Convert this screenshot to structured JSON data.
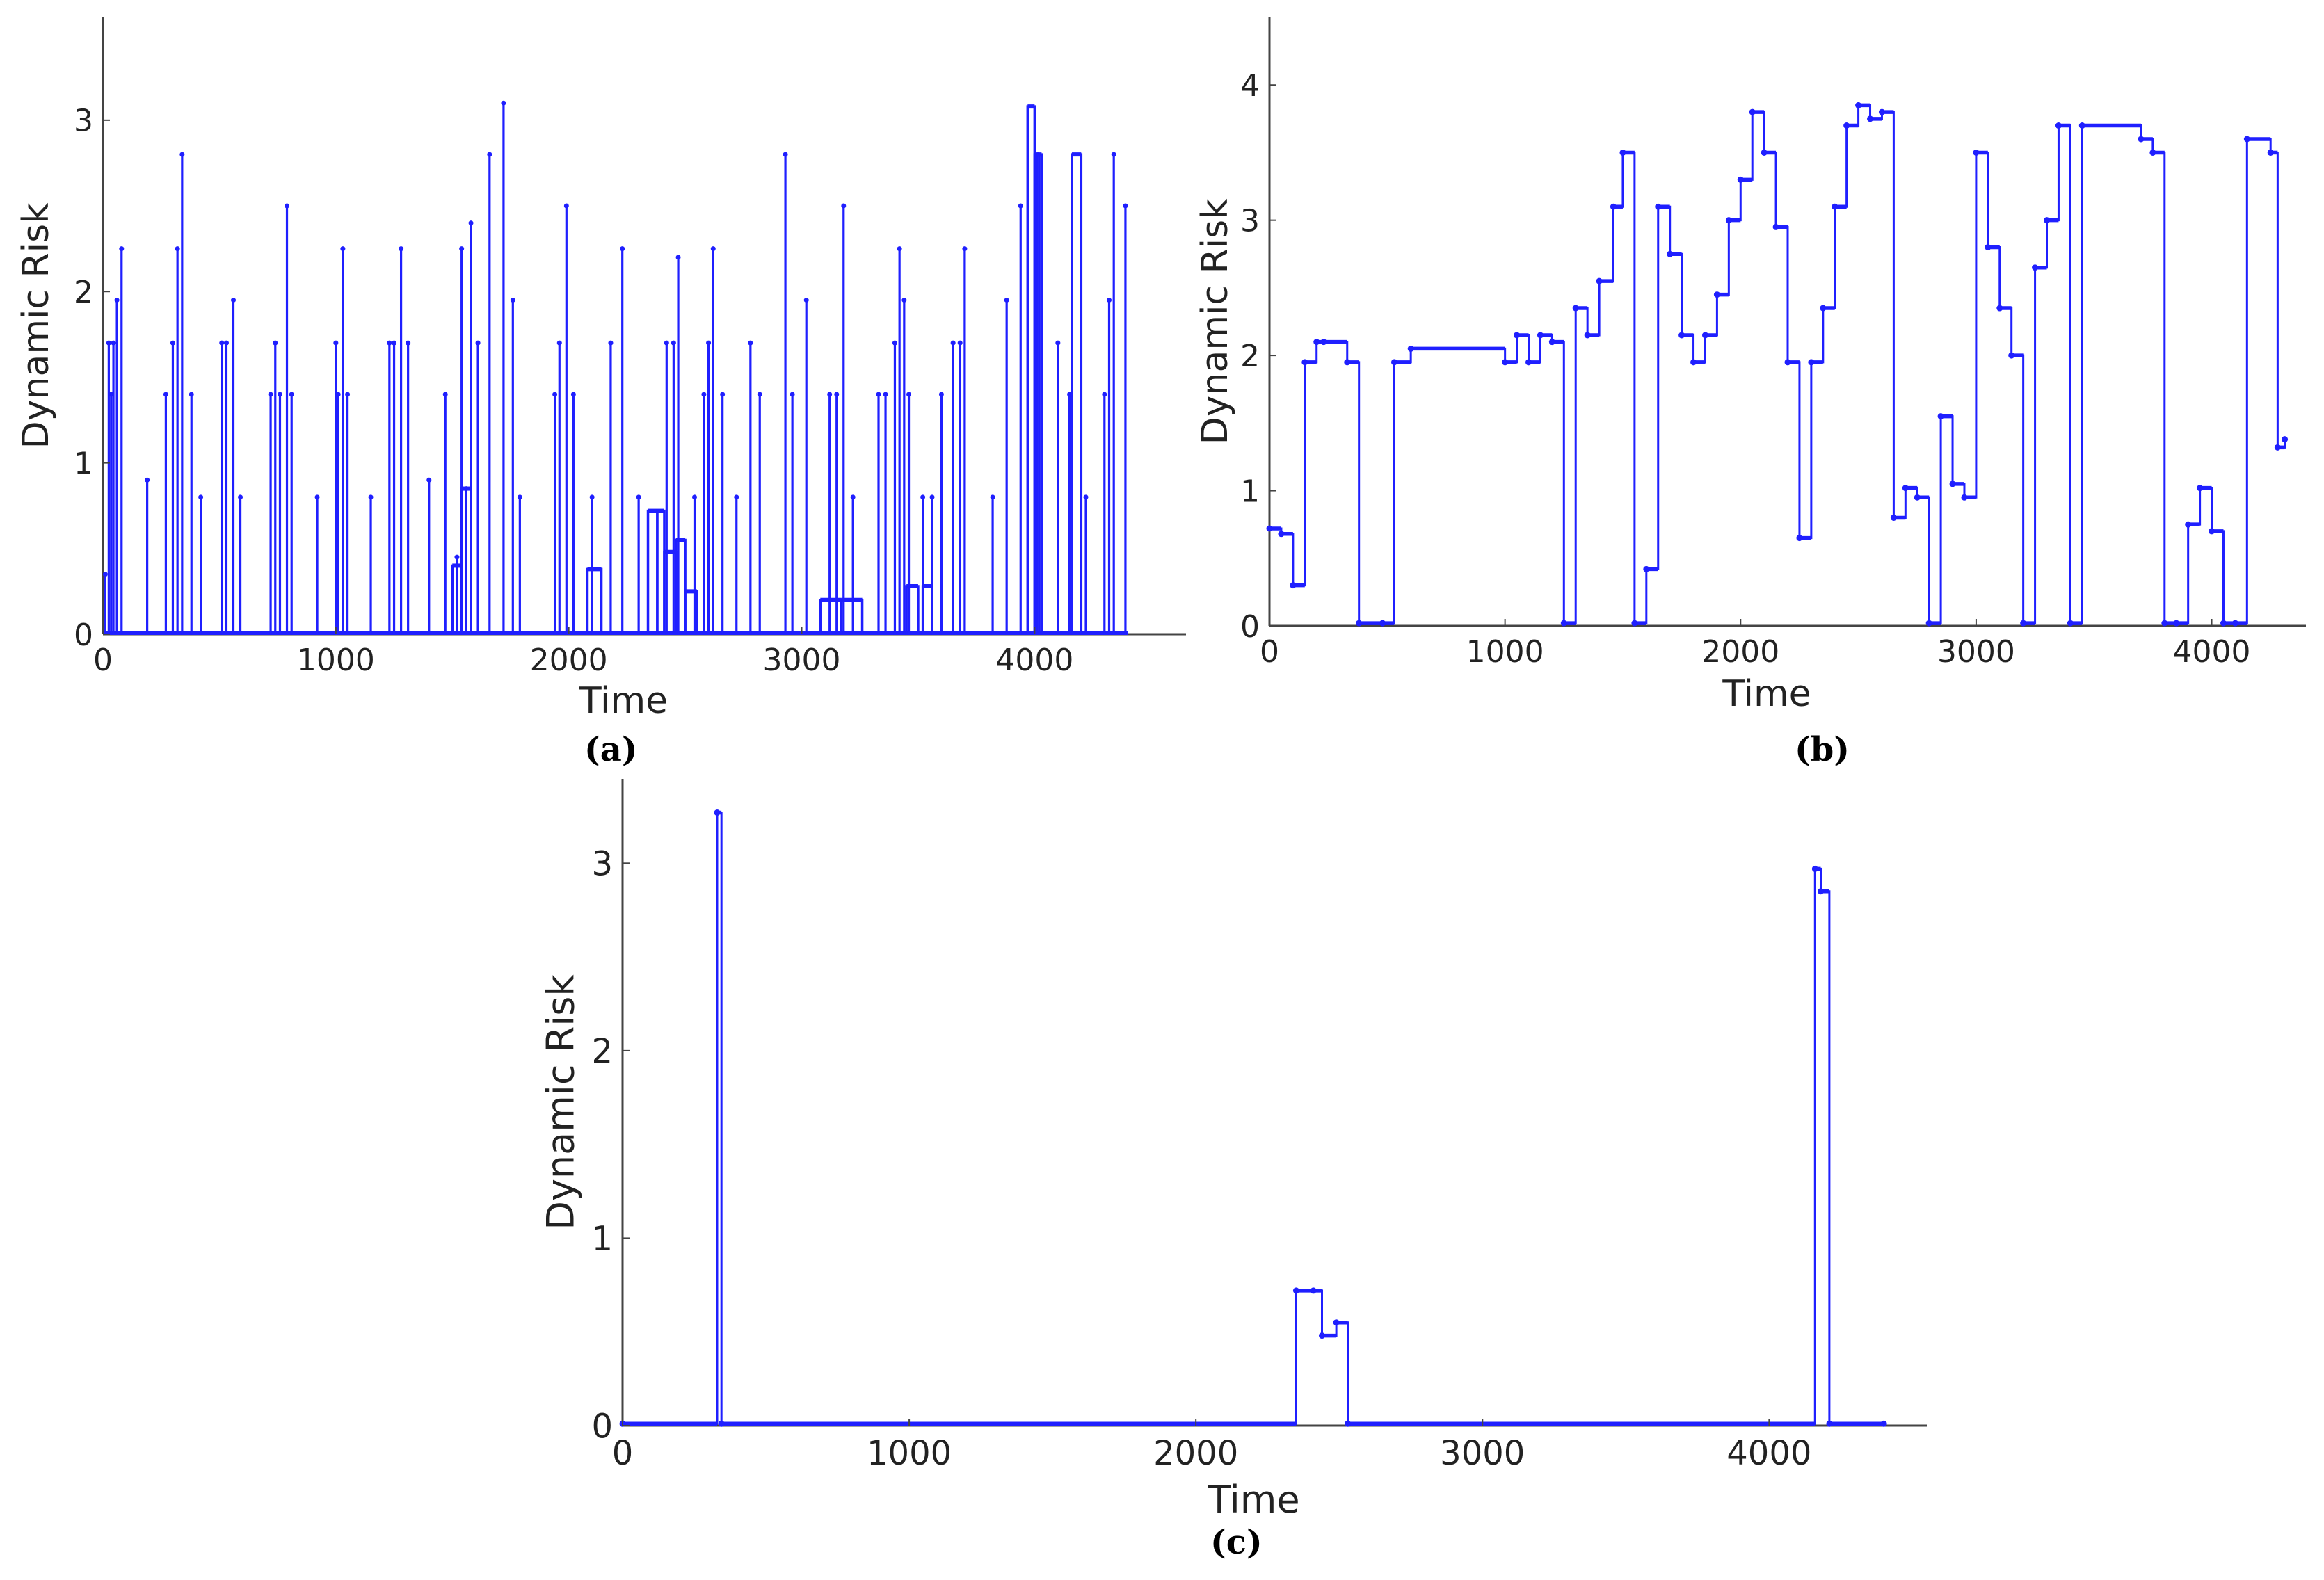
{
  "chart_data": [
    {
      "type": "line",
      "step": true,
      "caption": "(a)",
      "xlabel": "Time",
      "ylabel": "Dynamic Risk",
      "xlim": [
        0,
        4650
      ],
      "ylim": [
        0,
        3.6
      ],
      "xticks": [
        0,
        1000,
        2000,
        3000,
        4000
      ],
      "yticks": [
        0,
        1,
        2,
        3
      ],
      "grid": false,
      "color": "#1f1fff",
      "spikes": [
        [
          10,
          0.35
        ],
        [
          25,
          1.7
        ],
        [
          35,
          1.4
        ],
        [
          45,
          1.7
        ],
        [
          60,
          1.95
        ],
        [
          80,
          2.25
        ],
        [
          190,
          0.9
        ],
        [
          270,
          1.4
        ],
        [
          300,
          1.7
        ],
        [
          320,
          2.25
        ],
        [
          340,
          2.8
        ],
        [
          380,
          1.4
        ],
        [
          420,
          0.8
        ],
        [
          510,
          1.7
        ],
        [
          530,
          1.7
        ],
        [
          560,
          1.95
        ],
        [
          590,
          0.8
        ],
        [
          720,
          1.4
        ],
        [
          740,
          1.7
        ],
        [
          760,
          1.4
        ],
        [
          790,
          2.5
        ],
        [
          810,
          1.4
        ],
        [
          920,
          0.8
        ],
        [
          1000,
          1.7
        ],
        [
          1010,
          1.4
        ],
        [
          1030,
          2.25
        ],
        [
          1050,
          1.4
        ],
        [
          1150,
          0.8
        ],
        [
          1230,
          1.7
        ],
        [
          1250,
          1.7
        ],
        [
          1280,
          2.25
        ],
        [
          1310,
          1.7
        ],
        [
          1400,
          0.9
        ],
        [
          1470,
          1.4
        ],
        [
          1520,
          0.45
        ],
        [
          1540,
          2.25
        ],
        [
          1560,
          0.85
        ],
        [
          1580,
          2.4
        ],
        [
          1610,
          1.7
        ],
        [
          1660,
          2.8
        ],
        [
          1720,
          3.1
        ],
        [
          1760,
          1.95
        ],
        [
          1790,
          0.8
        ],
        [
          1940,
          1.4
        ],
        [
          1960,
          1.7
        ],
        [
          1990,
          2.5
        ],
        [
          2020,
          1.4
        ],
        [
          2100,
          0.8
        ],
        [
          2180,
          1.7
        ],
        [
          2230,
          2.25
        ],
        [
          2300,
          0.8
        ],
        [
          2420,
          1.7
        ],
        [
          2450,
          1.7
        ],
        [
          2470,
          2.2
        ],
        [
          2540,
          0.8
        ],
        [
          2580,
          1.4
        ],
        [
          2600,
          1.7
        ],
        [
          2620,
          2.25
        ],
        [
          2660,
          1.4
        ],
        [
          2720,
          0.8
        ],
        [
          2780,
          1.7
        ],
        [
          2820,
          1.4
        ],
        [
          2930,
          2.8
        ],
        [
          2960,
          1.4
        ],
        [
          3020,
          1.95
        ],
        [
          3120,
          1.4
        ],
        [
          3150,
          1.4
        ],
        [
          3180,
          2.5
        ],
        [
          3220,
          0.8
        ],
        [
          3330,
          1.4
        ],
        [
          3360,
          1.4
        ],
        [
          3400,
          1.7
        ],
        [
          3420,
          2.25
        ],
        [
          3440,
          1.95
        ],
        [
          3460,
          1.4
        ],
        [
          3520,
          0.8
        ],
        [
          3560,
          0.8
        ],
        [
          3600,
          1.4
        ],
        [
          3650,
          1.7
        ],
        [
          3680,
          1.7
        ],
        [
          3700,
          2.25
        ],
        [
          3820,
          0.8
        ],
        [
          3880,
          1.95
        ],
        [
          3940,
          2.5
        ],
        [
          4100,
          1.7
        ],
        [
          4150,
          1.4
        ],
        [
          4220,
          0.8
        ],
        [
          4300,
          1.4
        ],
        [
          4320,
          1.95
        ],
        [
          4340,
          2.8
        ],
        [
          4390,
          2.5
        ]
      ],
      "blocks": [
        [
          1500,
          1540,
          0.4
        ],
        [
          1540,
          1580,
          0.85
        ],
        [
          2080,
          2140,
          0.38
        ],
        [
          2340,
          2380,
          0.72
        ],
        [
          2380,
          2410,
          0.72
        ],
        [
          2410,
          2460,
          0.48
        ],
        [
          2460,
          2500,
          0.55
        ],
        [
          2500,
          2550,
          0.25
        ],
        [
          3080,
          3170,
          0.2
        ],
        [
          3170,
          3260,
          0.2
        ],
        [
          3450,
          3500,
          0.28
        ],
        [
          3520,
          3560,
          0.28
        ],
        [
          3970,
          4000,
          3.08
        ],
        [
          4000,
          4020,
          2.8
        ],
        [
          4010,
          4030,
          2.8
        ],
        [
          4160,
          4200,
          2.8
        ]
      ]
    },
    {
      "type": "line",
      "step": true,
      "caption": "(b)",
      "xlabel": "Time",
      "ylabel": "Dynamic Risk",
      "xlim": [
        0,
        4400
      ],
      "ylim": [
        0,
        4.5
      ],
      "xticks": [
        0,
        1000,
        2000,
        3000,
        4000
      ],
      "yticks": [
        0,
        1,
        2,
        3,
        4
      ],
      "grid": false,
      "color": "#1f1fff",
      "x": [
        0,
        50,
        100,
        150,
        200,
        230,
        330,
        380,
        480,
        530,
        600,
        1000,
        1050,
        1100,
        1150,
        1200,
        1250,
        1300,
        1350,
        1400,
        1460,
        1500,
        1550,
        1600,
        1650,
        1700,
        1750,
        1800,
        1850,
        1900,
        1950,
        2000,
        2050,
        2100,
        2150,
        2200,
        2250,
        2300,
        2350,
        2400,
        2450,
        2500,
        2550,
        2600,
        2650,
        2700,
        2750,
        2800,
        2850,
        2900,
        2950,
        3000,
        3050,
        3100,
        3150,
        3200,
        3250,
        3300,
        3350,
        3400,
        3450,
        3700,
        3750,
        3800,
        3850,
        3900,
        3950,
        4000,
        4050,
        4100,
        4150,
        4250,
        4280,
        4310
      ],
      "y": [
        0.72,
        0.68,
        0.3,
        1.95,
        2.1,
        2.1,
        1.95,
        0.02,
        0.02,
        1.95,
        2.05,
        1.95,
        2.15,
        1.95,
        2.15,
        2.1,
        0.02,
        2.35,
        2.15,
        2.55,
        3.1,
        3.5,
        0.02,
        0.42,
        3.1,
        2.75,
        2.15,
        1.95,
        2.15,
        2.45,
        3.0,
        3.3,
        3.8,
        3.5,
        2.95,
        1.95,
        0.65,
        1.95,
        2.35,
        3.1,
        3.7,
        3.85,
        3.75,
        3.8,
        0.8,
        1.02,
        0.95,
        0.02,
        1.55,
        1.05,
        0.95,
        3.5,
        2.8,
        2.35,
        2.0,
        0.02,
        2.65,
        3.0,
        3.7,
        0.02,
        3.7,
        3.6,
        3.5,
        0.02,
        0.02,
        0.75,
        1.02,
        0.7,
        0.02,
        0.02,
        3.6,
        3.5,
        1.32,
        1.38
      ]
    },
    {
      "type": "line",
      "step": true,
      "caption": "(c)",
      "xlabel": "Time",
      "ylabel": "Dynamic Risk",
      "xlim": [
        0,
        4550
      ],
      "ylim": [
        0,
        3.45
      ],
      "xticks": [
        0,
        1000,
        2000,
        3000,
        4000
      ],
      "yticks": [
        0,
        1,
        2,
        3
      ],
      "grid": false,
      "color": "#1f1fff",
      "x": [
        0,
        330,
        345,
        2350,
        2410,
        2440,
        2490,
        2530,
        4160,
        4180,
        4210,
        4400
      ],
      "y": [
        0.01,
        3.27,
        0.01,
        0.72,
        0.72,
        0.48,
        0.55,
        0.01,
        2.97,
        2.85,
        0.01,
        0.01
      ]
    }
  ]
}
